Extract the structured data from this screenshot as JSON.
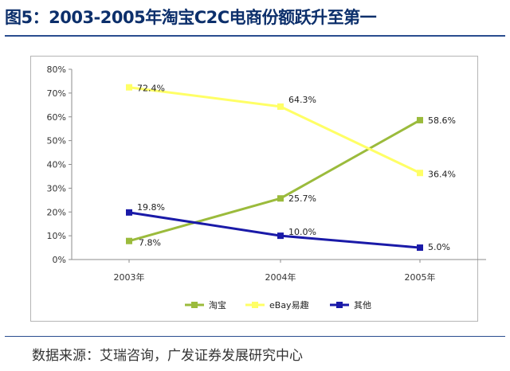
{
  "title": "图5：2003-2005年淘宝C2C电商份额跃升至第一",
  "source": "数据来源：艾瑞咨询，广发证券发展研究中心",
  "chart_data": {
    "type": "line",
    "x": [
      "2003年",
      "2004年",
      "2005年"
    ],
    "ylim": [
      0,
      80
    ],
    "yticks": [
      "0%",
      "10%",
      "20%",
      "30%",
      "40%",
      "50%",
      "60%",
      "70%",
      "80%"
    ],
    "grid": false,
    "legend_position": "bottom",
    "series": [
      {
        "name": "淘宝",
        "values": [
          7.8,
          25.7,
          58.6
        ],
        "labels": [
          "7.8%",
          "25.7%",
          "58.6%"
        ],
        "color": "#9bbb3c"
      },
      {
        "name": "eBay易趣",
        "values": [
          72.4,
          64.3,
          36.4
        ],
        "labels": [
          "72.4%",
          "64.3%",
          "36.4%"
        ],
        "color": "#ffff66"
      },
      {
        "name": "其他",
        "values": [
          19.8,
          10.0,
          5.0
        ],
        "labels": [
          "19.8%",
          "10.0%",
          "5.0%"
        ],
        "color": "#1a1aa8"
      }
    ]
  }
}
